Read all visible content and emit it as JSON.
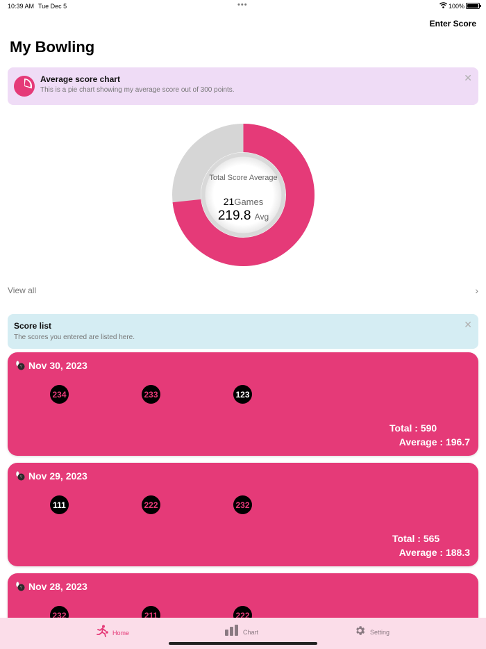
{
  "status_bar": {
    "time": "10:39 AM",
    "date": "Tue Dec 5",
    "dots": "•••",
    "battery": "100%"
  },
  "header": {
    "enter_score_label": "Enter Score",
    "title": "My Bowling"
  },
  "chart_tip": {
    "icon": "pie-chart-icon",
    "title": "Average score chart",
    "description": "This is a pie chart showing my average score out of 300 points.",
    "close": "✕"
  },
  "summary": {
    "label": "Total Score Average",
    "games": "21",
    "games_unit": "Games",
    "average": "219.8",
    "average_unit": "Avg",
    "max_score": 300,
    "fill_fraction": 0.733
  },
  "view_all": {
    "label": "View all",
    "chevron": "›"
  },
  "score_tip": {
    "title": "Score list",
    "description": "The scores you entered are listed here.",
    "close": "✕"
  },
  "score_cards": [
    {
      "date": "Nov 30, 2023",
      "scores": [
        "234",
        "233",
        "123"
      ],
      "total": "Total : 590",
      "average": "Average : 196.7"
    },
    {
      "date": "Nov 29, 2023",
      "scores": [
        "111",
        "222",
        "232"
      ],
      "total": "Total : 565",
      "average": "Average : 188.3"
    },
    {
      "date": "Nov 28, 2023",
      "scores": [
        "232",
        "211",
        "222"
      ]
    }
  ],
  "tab_bar": {
    "tabs": [
      {
        "label": "Home",
        "icon": "bowler-icon",
        "active": true
      },
      {
        "label": "Chart",
        "icon": "bar-chart-icon",
        "active": false
      },
      {
        "label": "Setting",
        "icon": "gear-icon",
        "active": false
      }
    ]
  },
  "colors": {
    "accent": "#e53a78",
    "donut_track": "#d6d6d6",
    "chart_tip_bg": "#efdcf6",
    "score_tip_bg": "#d5edf3",
    "tab_bar_bg": "#fbdde9",
    "inactive_tab": "#8a7a82"
  }
}
